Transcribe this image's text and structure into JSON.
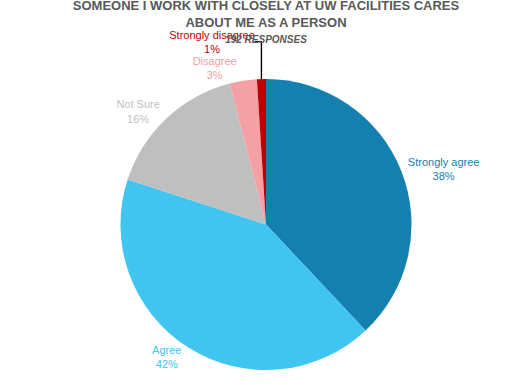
{
  "chart_data": {
    "type": "pie",
    "title": "SOMEONE I WORK WITH CLOSELY AT UW FACILITIES CARES ABOUT ME AS A PERSON",
    "subtitle": "192 RESPONSES",
    "categories": [
      "Strongly agree",
      "Agree",
      "Not Sure",
      "Disagree",
      "Strongly disagree"
    ],
    "values": [
      38,
      42,
      16,
      3,
      1
    ],
    "value_labels": [
      "38%",
      "42%",
      "16%",
      "3%",
      "1%"
    ],
    "colors": [
      "#1380b0",
      "#3fc5f0",
      "#bfbfbf",
      "#f4a0a4",
      "#c00000"
    ],
    "data_labels": true
  }
}
